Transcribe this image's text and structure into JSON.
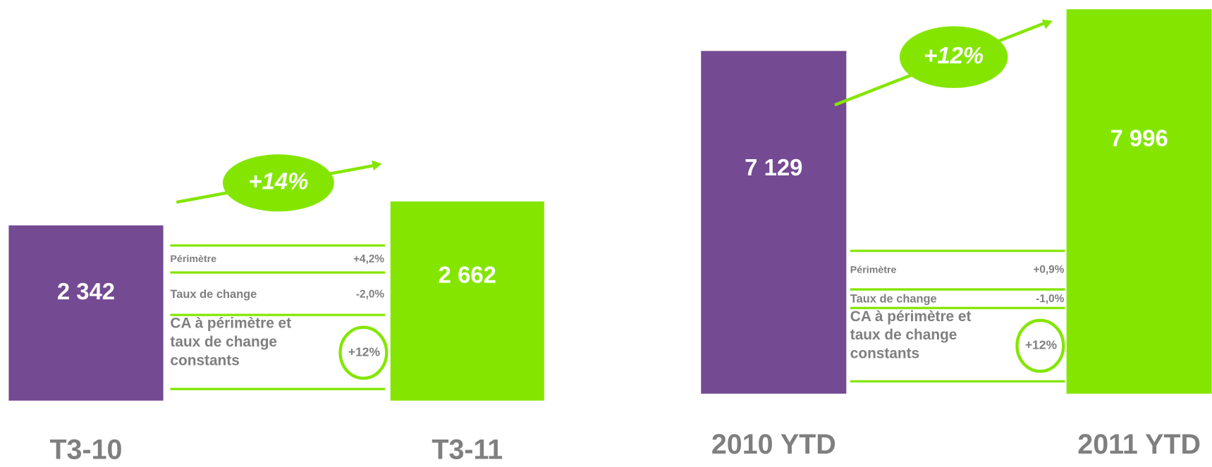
{
  "chart_data": [
    {
      "type": "bar",
      "categories": [
        "T3-10",
        "T3-11"
      ],
      "values": [
        2342,
        2662
      ],
      "value_labels": [
        "2 342",
        "2 662"
      ],
      "colors": [
        "#744a93",
        "#84e600"
      ],
      "growth": "+14%",
      "bridge": [
        {
          "label": "Périmètre",
          "value": "+4,2%"
        },
        {
          "label": "Taux de change",
          "value": "-2,0%"
        }
      ],
      "bridge_total": {
        "label": "CA à périmètre et taux de change constants",
        "value": "+12%"
      }
    },
    {
      "type": "bar",
      "categories": [
        "2010 YTD",
        "2011 YTD"
      ],
      "values": [
        7129,
        7996
      ],
      "value_labels": [
        "7 129",
        "7 996"
      ],
      "colors": [
        "#744a93",
        "#84e600"
      ],
      "growth": "+12%",
      "bridge": [
        {
          "label": "Périmètre",
          "value": "+0,9%"
        },
        {
          "label": "Taux de change",
          "value": "-1,0%"
        }
      ],
      "bridge_total": {
        "label": "CA à périmètre et taux de change constants",
        "value": "+12%"
      }
    }
  ]
}
